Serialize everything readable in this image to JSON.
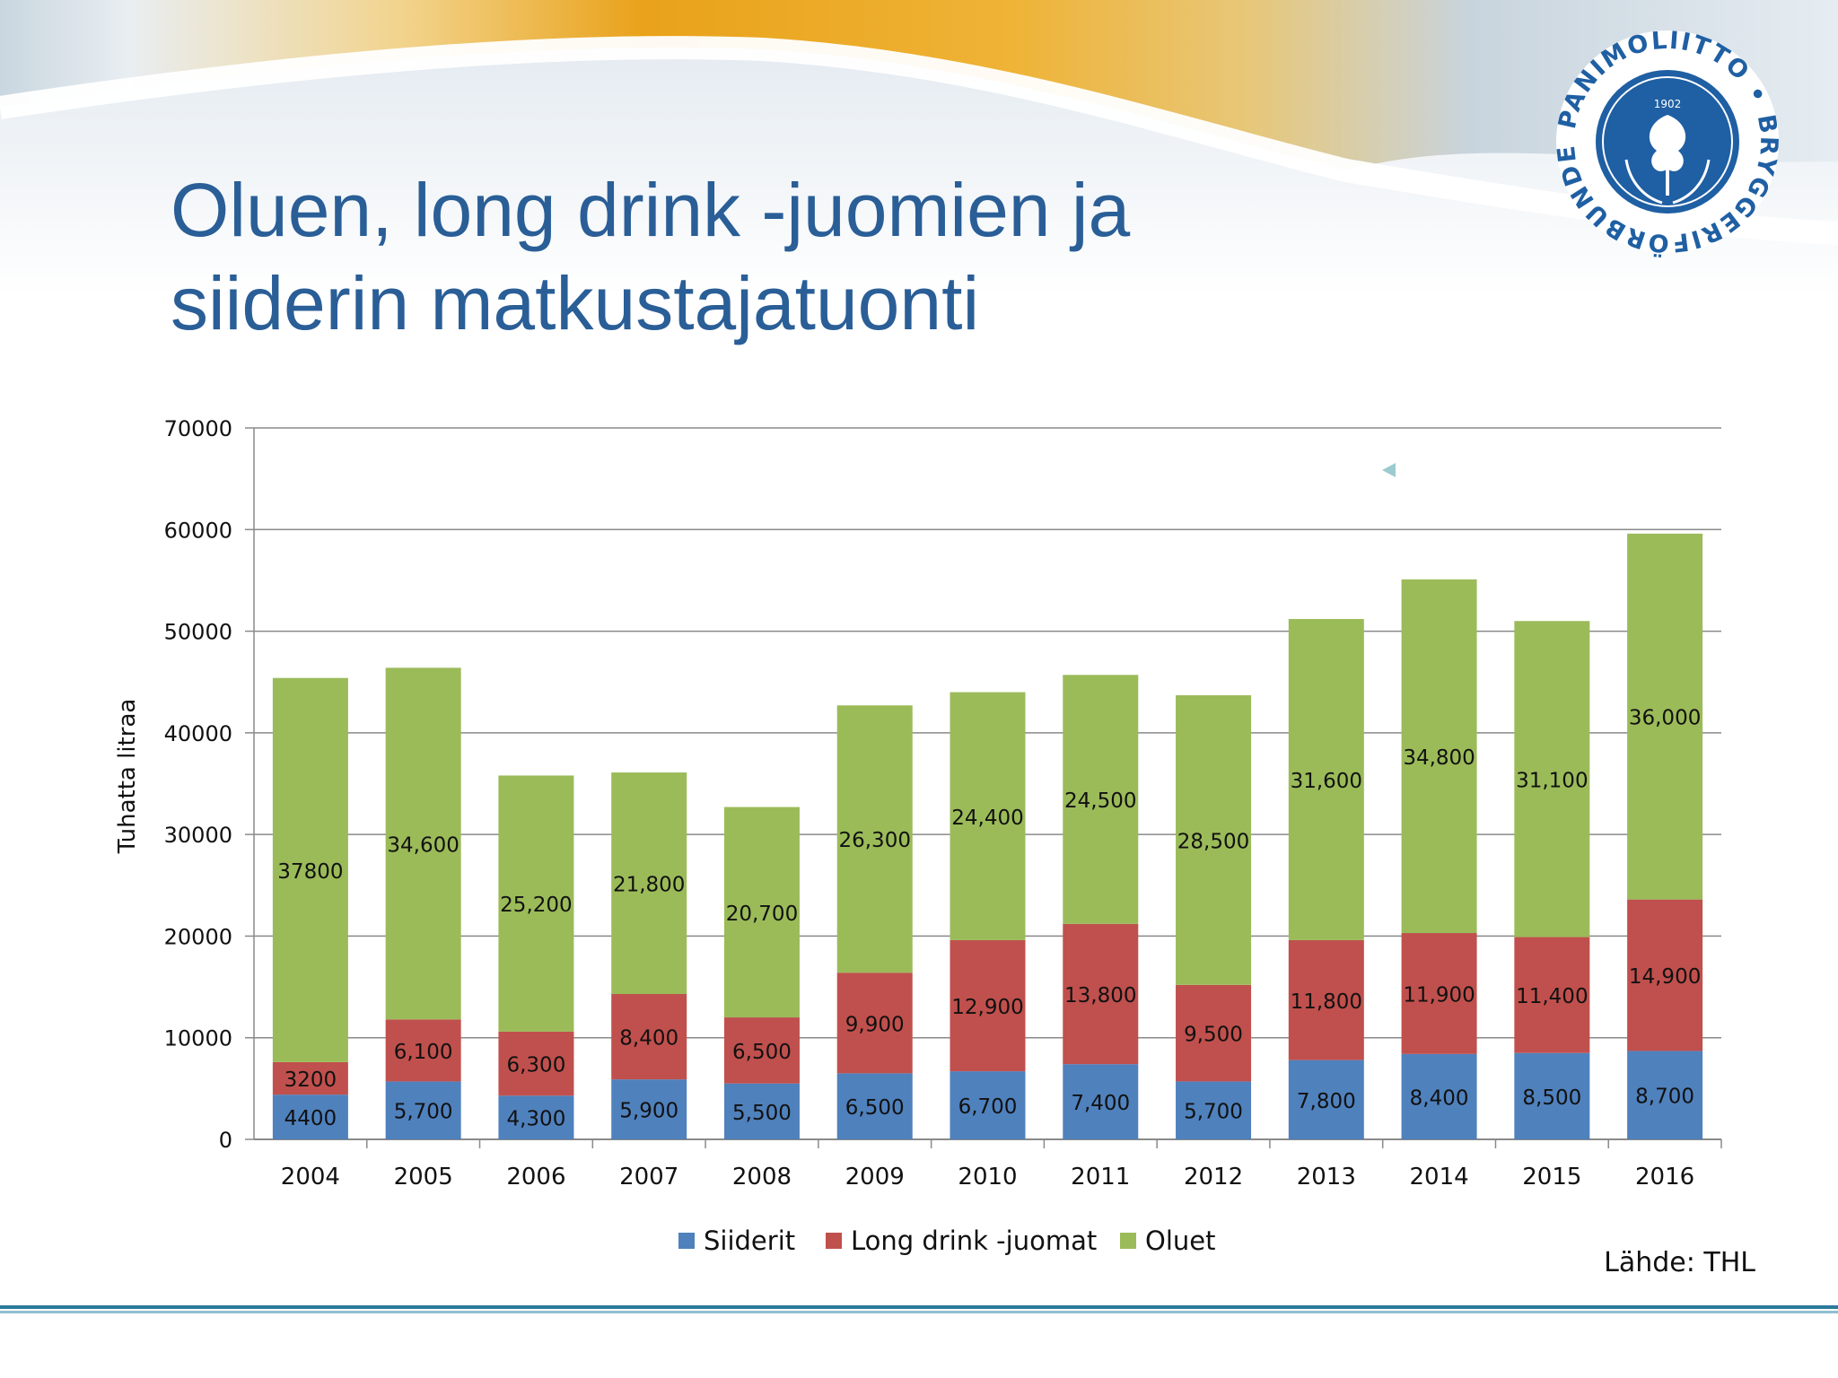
{
  "slide": {
    "title_line1": "Oluen, long drink -juomien ja",
    "title_line2": "siiderin matkustajatuonti",
    "source": "Lähde: THL"
  },
  "logo": {
    "ring_text": "PANIMOLIITTO • BRYGGERIFÖRBUNDET •",
    "year": "1902"
  },
  "colors": {
    "title": "#2a5e97",
    "Siiderit": "#4f81bd",
    "Long drink -juomat": "#c0504d",
    "Oluet": "#9bbb59",
    "footer": "#2b7a9c"
  },
  "chart_data": {
    "type": "bar",
    "stacked": true,
    "ylabel": "Tuhatta litraa",
    "xlabel": "",
    "ylim": [
      0,
      70000
    ],
    "yticks": [
      0,
      10000,
      20000,
      30000,
      40000,
      50000,
      60000,
      70000
    ],
    "grid": true,
    "legend_position": "bottom",
    "categories": [
      "2004",
      "2005",
      "2006",
      "2007",
      "2008",
      "2009",
      "2010",
      "2011",
      "2012",
      "2013",
      "2014",
      "2015",
      "2016"
    ],
    "series": [
      {
        "name": "Siiderit",
        "values": [
          4400,
          5700,
          4300,
          5900,
          5500,
          6500,
          6700,
          7400,
          5700,
          7800,
          8400,
          8500,
          8700
        ],
        "labels": [
          "4400",
          "5,700",
          "4,300",
          "5,900",
          "5,500",
          "6,500",
          "6,700",
          "7,400",
          "5,700",
          "7,800",
          "8,400",
          "8,500",
          "8,700"
        ]
      },
      {
        "name": "Long drink -juomat",
        "values": [
          3200,
          6100,
          6300,
          8400,
          6500,
          9900,
          12900,
          13800,
          9500,
          11800,
          11900,
          11400,
          14900
        ],
        "labels": [
          "3200",
          "6,100",
          "6,300",
          "8,400",
          "6,500",
          "9,900",
          "12,900",
          "13,800",
          "9,500",
          "11,800",
          "11,900",
          "11,400",
          "14,900"
        ]
      },
      {
        "name": "Oluet",
        "values": [
          37800,
          34600,
          25200,
          21800,
          20700,
          26300,
          24400,
          24500,
          28500,
          31600,
          34800,
          31100,
          36000
        ],
        "labels": [
          "37800",
          "34,600",
          "25,200",
          "21,800",
          "20,700",
          "26,300",
          "24,400",
          "24,500",
          "28,500",
          "31,600",
          "34,800",
          "31,100",
          "36,000"
        ]
      }
    ]
  }
}
